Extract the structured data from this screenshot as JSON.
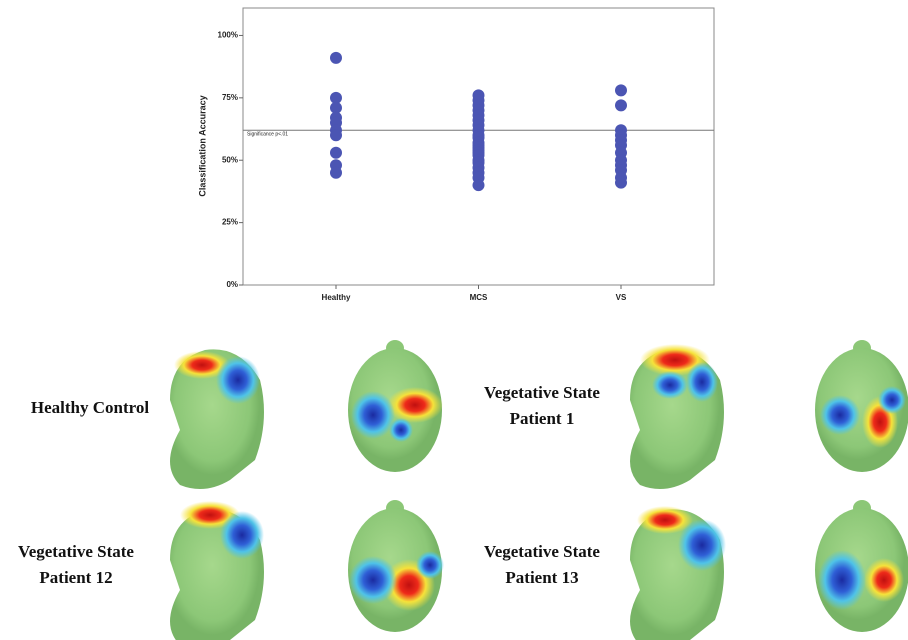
{
  "chart_data": {
    "type": "strip",
    "y_label": "Classification Accuracy",
    "categories": [
      "Healthy",
      "MCS",
      "VS"
    ],
    "values": [
      [
        91,
        75,
        71,
        67,
        65,
        62,
        60,
        53,
        48,
        45
      ],
      [
        76,
        74,
        72,
        70,
        68,
        66,
        64,
        62,
        60,
        59,
        57,
        56,
        55,
        54,
        53,
        52,
        50,
        49,
        47,
        45,
        43,
        40
      ],
      [
        78,
        72,
        62,
        60,
        58,
        56,
        53,
        50,
        48,
        46,
        43,
        41
      ]
    ],
    "color": "#4b55b3",
    "ylim": [
      0,
      111
    ],
    "yticks": [
      {
        "value": 0,
        "label": "0%"
      },
      {
        "value": 25,
        "label": "25%"
      },
      {
        "value": 50,
        "label": "50%"
      },
      {
        "value": 75,
        "label": "75%"
      },
      {
        "value": 100,
        "label": "100%"
      }
    ],
    "threshold": {
      "value": 62,
      "label": "Significance p<.01"
    }
  },
  "panels": [
    {
      "label": [
        "Healthy Control"
      ]
    },
    {
      "label": [
        "Vegetative State",
        "Patient 1"
      ]
    },
    {
      "label": [
        "Vegetative State",
        "Patient 12"
      ]
    },
    {
      "label": [
        "Vegetative State",
        "Patient 13"
      ]
    }
  ]
}
